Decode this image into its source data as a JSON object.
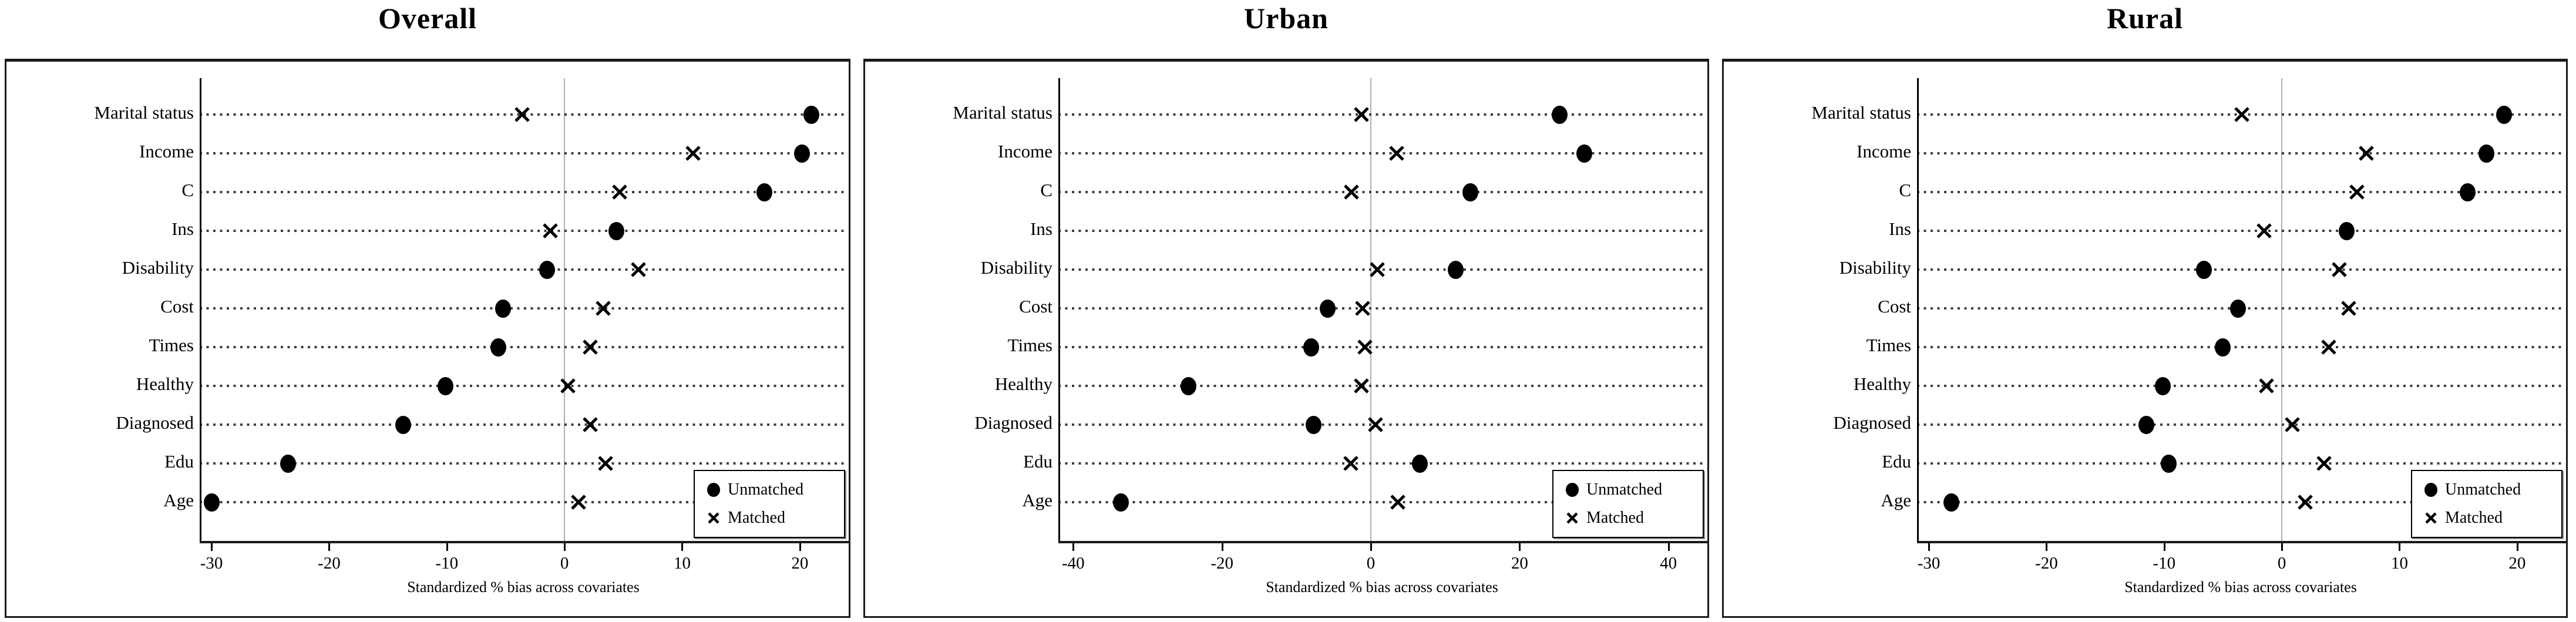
{
  "figure": {
    "xlabel": "Standardized % bias across covariates",
    "legend": {
      "unmatched": "Unmatched",
      "matched": "Matched"
    },
    "colors": {
      "marker": "#000000",
      "zero_gridline": "#b0b0b0",
      "dotted_leader": "#3d3d3d",
      "axis": "#000000"
    }
  },
  "chart_data": [
    {
      "type": "scatter",
      "title": "Overall",
      "xlabel": "Standardized % bias across covariates",
      "categories": [
        "Marital status",
        "Income",
        "C",
        "Ins",
        "Disability",
        "Cost",
        "Times",
        "Healthy",
        "Diagnosed",
        "Edu",
        "Age"
      ],
      "series": [
        {
          "name": "Unmatched",
          "marker": "filled-circle",
          "values": [
            21.0,
            20.2,
            17.0,
            4.4,
            -1.5,
            -5.2,
            -5.6,
            -10.1,
            -13.7,
            -23.5,
            -30.0
          ]
        },
        {
          "name": "Matched",
          "marker": "x-cross",
          "values": [
            -3.6,
            10.9,
            4.7,
            -1.2,
            6.3,
            3.3,
            2.2,
            0.3,
            2.2,
            3.5,
            1.2
          ]
        }
      ],
      "xticks": [
        -30,
        -20,
        -10,
        0,
        10,
        20
      ],
      "xtick_labels": [
        "-30",
        "-20",
        "-10",
        "0",
        "10",
        "20"
      ],
      "xlim": [
        -31,
        24
      ],
      "grid": "dotted horizontal leaders + vertical zero line",
      "legend_position": "lower right"
    },
    {
      "type": "scatter",
      "title": "Urban",
      "xlabel": "Standardized % bias across covariates",
      "categories": [
        "Marital status",
        "Income",
        "C",
        "Ins",
        "Disability",
        "Cost",
        "Times",
        "Healthy",
        "Diagnosed",
        "Edu",
        "Age"
      ],
      "series": [
        {
          "name": "Unmatched",
          "marker": "filled-circle",
          "values": [
            25.4,
            28.7,
            13.4,
            null,
            11.4,
            -5.8,
            -8.0,
            -24.5,
            -7.7,
            6.6,
            -33.6
          ]
        },
        {
          "name": "Matched",
          "marker": "x-cross",
          "values": [
            -1.3,
            3.5,
            -2.6,
            null,
            0.9,
            -1.1,
            -0.8,
            -1.3,
            0.6,
            -2.7,
            3.6
          ]
        }
      ],
      "xticks": [
        -40,
        -20,
        0,
        20,
        40
      ],
      "xtick_labels": [
        "-40",
        "-20",
        "0",
        "20",
        "40"
      ],
      "xlim": [
        -42,
        45
      ],
      "grid": "dotted horizontal leaders + vertical zero line",
      "legend_position": "lower right"
    },
    {
      "type": "scatter",
      "title": "Rural",
      "xlabel": "Standardized % bias across covariates",
      "categories": [
        "Marital status",
        "Income",
        "C",
        "Ins",
        "Disability",
        "Cost",
        "Times",
        "Healthy",
        "Diagnosed",
        "Edu",
        "Age"
      ],
      "series": [
        {
          "name": "Unmatched",
          "marker": "filled-circle",
          "values": [
            18.9,
            17.4,
            15.8,
            5.5,
            -6.6,
            -3.7,
            -5.0,
            -10.1,
            -11.5,
            -9.6,
            -28.1
          ]
        },
        {
          "name": "Matched",
          "marker": "x-cross",
          "values": [
            -3.4,
            7.2,
            6.4,
            -1.5,
            4.9,
            5.7,
            4.0,
            -1.3,
            0.9,
            3.6,
            2.0
          ]
        }
      ],
      "xticks": [
        -30,
        -20,
        -10,
        0,
        10,
        20
      ],
      "xtick_labels": [
        "-30",
        "-20",
        "-10",
        "0",
        "10",
        "20"
      ],
      "xlim": [
        -31,
        24
      ],
      "grid": "dotted horizontal leaders + vertical zero line",
      "legend_position": "lower right"
    }
  ]
}
